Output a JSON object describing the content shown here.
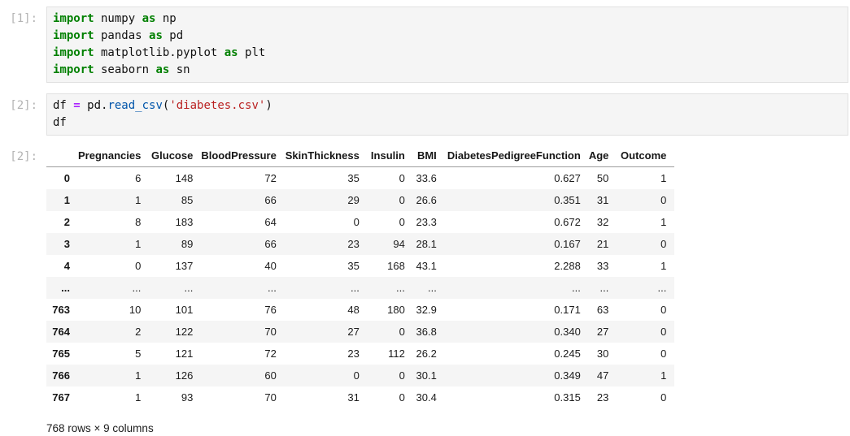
{
  "colors": {
    "keyword": "#008000",
    "operator": "#AA22FF",
    "function": "#0055AA",
    "string": "#BA2121",
    "cell_background": "#f5f5f5",
    "prompt_text": "#b3b3b3",
    "row_stripe": "#f5f5f5"
  },
  "cells": [
    {
      "prompt": "[1]:",
      "code_lines": [
        [
          [
            "kw",
            "import"
          ],
          [
            "pl",
            " numpy "
          ],
          [
            "kw",
            "as"
          ],
          [
            "pl",
            " np"
          ]
        ],
        [
          [
            "kw",
            "import"
          ],
          [
            "pl",
            " pandas "
          ],
          [
            "kw",
            "as"
          ],
          [
            "pl",
            " pd"
          ]
        ],
        [
          [
            "kw",
            "import"
          ],
          [
            "pl",
            " matplotlib.pyplot "
          ],
          [
            "kw",
            "as"
          ],
          [
            "pl",
            " plt"
          ]
        ],
        [
          [
            "kw",
            "import"
          ],
          [
            "pl",
            " seaborn "
          ],
          [
            "kw",
            "as"
          ],
          [
            "pl",
            " sn"
          ]
        ]
      ]
    },
    {
      "prompt": "[2]:",
      "code_lines": [
        [
          [
            "pl",
            "df "
          ],
          [
            "op",
            "="
          ],
          [
            "pl",
            " pd."
          ],
          [
            "fn",
            "read_csv"
          ],
          [
            "pl",
            "("
          ],
          [
            "str",
            "'diabetes.csv'"
          ],
          [
            "pl",
            ")"
          ]
        ],
        [
          [
            "pl",
            "df"
          ]
        ]
      ]
    }
  ],
  "output": {
    "prompt": "[2]:",
    "table": {
      "index_header": "",
      "columns": [
        "Pregnancies",
        "Glucose",
        "BloodPressure",
        "SkinThickness",
        "Insulin",
        "BMI",
        "DiabetesPedigreeFunction",
        "Age",
        "Outcome"
      ],
      "rows": [
        {
          "index": "0",
          "values": [
            "6",
            "148",
            "72",
            "35",
            "0",
            "33.6",
            "0.627",
            "50",
            "1"
          ]
        },
        {
          "index": "1",
          "values": [
            "1",
            "85",
            "66",
            "29",
            "0",
            "26.6",
            "0.351",
            "31",
            "0"
          ]
        },
        {
          "index": "2",
          "values": [
            "8",
            "183",
            "64",
            "0",
            "0",
            "23.3",
            "0.672",
            "32",
            "1"
          ]
        },
        {
          "index": "3",
          "values": [
            "1",
            "89",
            "66",
            "23",
            "94",
            "28.1",
            "0.167",
            "21",
            "0"
          ]
        },
        {
          "index": "4",
          "values": [
            "0",
            "137",
            "40",
            "35",
            "168",
            "43.1",
            "2.288",
            "33",
            "1"
          ]
        },
        {
          "index": "...",
          "values": [
            "...",
            "...",
            "...",
            "...",
            "...",
            "...",
            "...",
            "...",
            "..."
          ]
        },
        {
          "index": "763",
          "values": [
            "10",
            "101",
            "76",
            "48",
            "180",
            "32.9",
            "0.171",
            "63",
            "0"
          ]
        },
        {
          "index": "764",
          "values": [
            "2",
            "122",
            "70",
            "27",
            "0",
            "36.8",
            "0.340",
            "27",
            "0"
          ]
        },
        {
          "index": "765",
          "values": [
            "5",
            "121",
            "72",
            "23",
            "112",
            "26.2",
            "0.245",
            "30",
            "0"
          ]
        },
        {
          "index": "766",
          "values": [
            "1",
            "126",
            "60",
            "0",
            "0",
            "30.1",
            "0.349",
            "47",
            "1"
          ]
        },
        {
          "index": "767",
          "values": [
            "1",
            "93",
            "70",
            "31",
            "0",
            "30.4",
            "0.315",
            "23",
            "0"
          ]
        }
      ]
    },
    "footer": "768 rows × 9 columns"
  }
}
